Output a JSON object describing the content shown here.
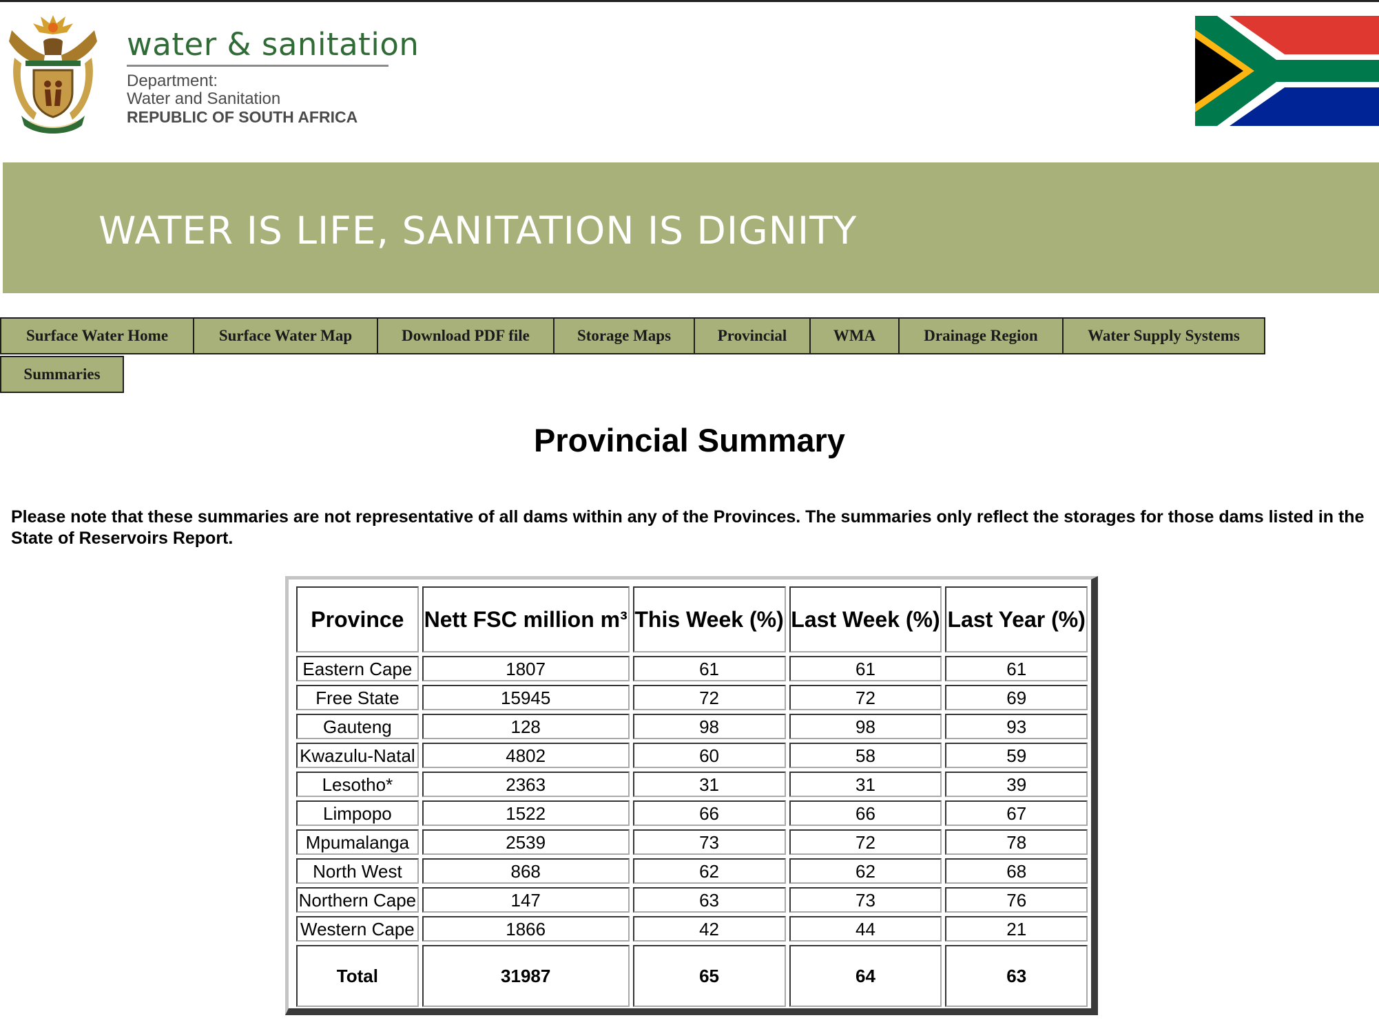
{
  "header": {
    "brand_name": "water & sanitation",
    "dept_line1": "Department:",
    "dept_line2": "Water and Sanitation",
    "dept_line3": "REPUBLIC OF SOUTH AFRICA"
  },
  "banner": {
    "slogan": "WATER IS LIFE, SANITATION IS DIGNITY",
    "color": "#a8b179"
  },
  "nav": [
    {
      "label": "Surface Water Home"
    },
    {
      "label": "Surface Water Map"
    },
    {
      "label": "Download PDF file"
    },
    {
      "label": "Storage Maps"
    },
    {
      "label": "Provincial"
    },
    {
      "label": "WMA"
    },
    {
      "label": "Drainage Region"
    },
    {
      "label": "Water Supply Systems"
    },
    {
      "label": "Summaries"
    }
  ],
  "main": {
    "title": "Provincial Summary",
    "note": "Please note that these summaries are not representative of all dams within any of the Provinces. The summaries only reflect the storages for those dams listed in the State of Reservoirs Report."
  },
  "table": {
    "headers": [
      "Province",
      "Nett FSC million m³",
      "This Week (%)",
      "Last Week (%)",
      "Last Year (%)"
    ],
    "rows": [
      [
        "Eastern Cape",
        "1807",
        "61",
        "61",
        "61"
      ],
      [
        "Free State",
        "15945",
        "72",
        "72",
        "69"
      ],
      [
        "Gauteng",
        "128",
        "98",
        "98",
        "93"
      ],
      [
        "Kwazulu-Natal",
        "4802",
        "60",
        "58",
        "59"
      ],
      [
        "Lesotho*",
        "2363",
        "31",
        "31",
        "39"
      ],
      [
        "Limpopo",
        "1522",
        "66",
        "66",
        "67"
      ],
      [
        "Mpumalanga",
        "2539",
        "73",
        "72",
        "78"
      ],
      [
        "North West",
        "868",
        "62",
        "62",
        "68"
      ],
      [
        "Northern Cape",
        "147",
        "63",
        "73",
        "76"
      ],
      [
        "Western Cape",
        "1866",
        "42",
        "44",
        "21"
      ]
    ],
    "total": [
      "Total",
      "31987",
      "65",
      "64",
      "63"
    ]
  }
}
